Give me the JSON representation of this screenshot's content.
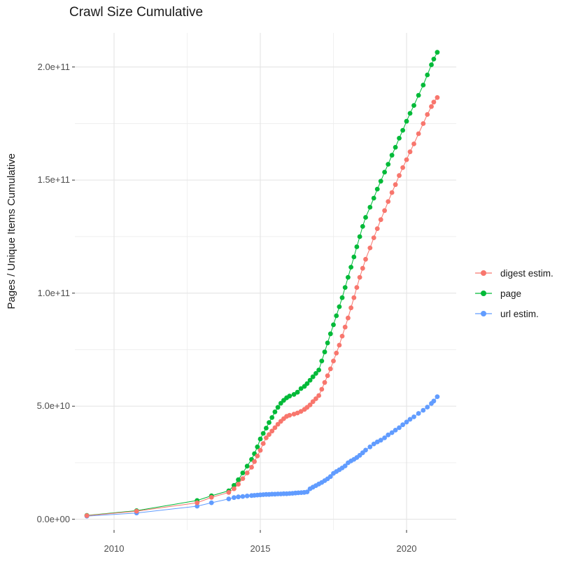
{
  "chart_data": {
    "type": "scatter",
    "title": "Crawl Size Cumulative",
    "ylabel": "Pages / Unique Items Cumulative",
    "xlabel": "",
    "value_unit": "1e9 (points stored as [year, value_in_billions]; 50 = 5.0e+10)",
    "grid": true,
    "legend_position": "right",
    "x_range": [
      2008.7,
      2021.7
    ],
    "y_range_billions": [
      -5,
      215
    ],
    "x_ticks": [
      {
        "label": "2010",
        "value": 2010
      },
      {
        "label": "2015",
        "value": 2015
      },
      {
        "label": "2020",
        "value": 2020
      }
    ],
    "x_minor": [
      2012.5,
      2017.5
    ],
    "y_ticks": [
      {
        "label": "0.0e+00",
        "value": 0
      },
      {
        "label": "5.0e+10",
        "value": 50
      },
      {
        "label": "1.0e+11",
        "value": 100
      },
      {
        "label": "1.5e+11",
        "value": 150
      },
      {
        "label": "2.0e+11",
        "value": 200
      }
    ],
    "y_minor": [
      25,
      75,
      125,
      175
    ],
    "series": [
      {
        "label": "digest estim.",
        "color": "#F8766D",
        "points": [
          [
            2009.07,
            1.6
          ],
          [
            2010.77,
            3.6
          ],
          [
            2012.84,
            7.3
          ],
          [
            2013.33,
            9.7
          ],
          [
            2013.92,
            11.9
          ],
          [
            2014.1,
            13.5
          ],
          [
            2014.25,
            15.5
          ],
          [
            2014.4,
            18.0
          ],
          [
            2014.55,
            20.5
          ],
          [
            2014.7,
            23.0
          ],
          [
            2014.8,
            25.5
          ],
          [
            2014.9,
            28.0
          ],
          [
            2015.0,
            30.5
          ],
          [
            2015.1,
            33.5
          ],
          [
            2015.2,
            36.0
          ],
          [
            2015.3,
            37.5
          ],
          [
            2015.4,
            39.0
          ],
          [
            2015.5,
            40.5
          ],
          [
            2015.6,
            42.0
          ],
          [
            2015.7,
            43.3
          ],
          [
            2015.8,
            44.5
          ],
          [
            2015.9,
            45.5
          ],
          [
            2016.0,
            46.0
          ],
          [
            2016.15,
            46.5
          ],
          [
            2016.27,
            47.0
          ],
          [
            2016.39,
            47.7
          ],
          [
            2016.51,
            48.6
          ],
          [
            2016.6,
            49.5
          ],
          [
            2016.7,
            50.6
          ],
          [
            2016.8,
            52.0
          ],
          [
            2016.9,
            53.3
          ],
          [
            2017.0,
            54.7
          ],
          [
            2017.1,
            57.5
          ],
          [
            2017.2,
            60.5
          ],
          [
            2017.3,
            63.5
          ],
          [
            2017.4,
            66.5
          ],
          [
            2017.5,
            70.0
          ],
          [
            2017.6,
            73.5
          ],
          [
            2017.7,
            77.0
          ],
          [
            2017.8,
            81.0
          ],
          [
            2017.9,
            85.0
          ],
          [
            2018.0,
            89.0
          ],
          [
            2018.1,
            93.5
          ],
          [
            2018.2,
            98.0
          ],
          [
            2018.3,
            102.5
          ],
          [
            2018.4,
            107.0
          ],
          [
            2018.5,
            111.0
          ],
          [
            2018.6,
            115.0
          ],
          [
            2018.75,
            120.0
          ],
          [
            2018.88,
            124.5
          ],
          [
            2019.0,
            128.5
          ],
          [
            2019.12,
            132.5
          ],
          [
            2019.25,
            136.5
          ],
          [
            2019.37,
            140.5
          ],
          [
            2019.5,
            144.5
          ],
          [
            2019.62,
            148.0
          ],
          [
            2019.75,
            152.0
          ],
          [
            2019.87,
            155.5
          ],
          [
            2020.0,
            159.0
          ],
          [
            2020.12,
            162.5
          ],
          [
            2020.25,
            166.0
          ],
          [
            2020.41,
            170.5
          ],
          [
            2020.57,
            175.0
          ],
          [
            2020.71,
            179.0
          ],
          [
            2020.85,
            182.5
          ],
          [
            2020.93,
            184.5
          ],
          [
            2021.05,
            186.5
          ]
        ]
      },
      {
        "label": "page",
        "color": "#00BA38",
        "points": [
          [
            2009.07,
            1.7
          ],
          [
            2010.77,
            3.8
          ],
          [
            2012.84,
            8.3
          ],
          [
            2013.33,
            10.4
          ],
          [
            2013.92,
            12.6
          ],
          [
            2014.1,
            15.0
          ],
          [
            2014.25,
            17.5
          ],
          [
            2014.4,
            20.5
          ],
          [
            2014.55,
            23.5
          ],
          [
            2014.7,
            26.5
          ],
          [
            2014.8,
            29.0
          ],
          [
            2014.9,
            32.0
          ],
          [
            2015.0,
            35.5
          ],
          [
            2015.1,
            38.0
          ],
          [
            2015.2,
            40.3
          ],
          [
            2015.3,
            42.8
          ],
          [
            2015.4,
            45.0
          ],
          [
            2015.5,
            47.5
          ],
          [
            2015.6,
            49.5
          ],
          [
            2015.7,
            51.3
          ],
          [
            2015.8,
            52.6
          ],
          [
            2015.9,
            53.7
          ],
          [
            2016.0,
            54.5
          ],
          [
            2016.15,
            55.2
          ],
          [
            2016.27,
            56.2
          ],
          [
            2016.39,
            57.8
          ],
          [
            2016.51,
            58.8
          ],
          [
            2016.6,
            60.0
          ],
          [
            2016.7,
            61.5
          ],
          [
            2016.8,
            63.0
          ],
          [
            2016.9,
            64.5
          ],
          [
            2017.0,
            66.0
          ],
          [
            2017.1,
            70.0
          ],
          [
            2017.2,
            74.0
          ],
          [
            2017.3,
            78.0
          ],
          [
            2017.4,
            82.0
          ],
          [
            2017.5,
            86.0
          ],
          [
            2017.6,
            90.0
          ],
          [
            2017.7,
            94.0
          ],
          [
            2017.8,
            98.0
          ],
          [
            2017.9,
            102.5
          ],
          [
            2018.0,
            107.0
          ],
          [
            2018.1,
            111.5
          ],
          [
            2018.2,
            116.0
          ],
          [
            2018.3,
            120.5
          ],
          [
            2018.4,
            125.0
          ],
          [
            2018.5,
            129.5
          ],
          [
            2018.6,
            133.5
          ],
          [
            2018.75,
            138.0
          ],
          [
            2018.88,
            142.0
          ],
          [
            2019.0,
            146.0
          ],
          [
            2019.12,
            149.5
          ],
          [
            2019.25,
            153.5
          ],
          [
            2019.37,
            157.0
          ],
          [
            2019.5,
            161.0
          ],
          [
            2019.62,
            164.5
          ],
          [
            2019.75,
            168.5
          ],
          [
            2019.87,
            172.0
          ],
          [
            2020.0,
            176.0
          ],
          [
            2020.12,
            179.5
          ],
          [
            2020.25,
            183.0
          ],
          [
            2020.41,
            187.5
          ],
          [
            2020.57,
            192.0
          ],
          [
            2020.71,
            196.5
          ],
          [
            2020.85,
            201.0
          ],
          [
            2020.93,
            203.5
          ],
          [
            2021.05,
            206.5
          ]
        ]
      },
      {
        "label": "url estim.",
        "color": "#619CFF",
        "points": [
          [
            2009.07,
            1.4
          ],
          [
            2010.77,
            2.8
          ],
          [
            2012.84,
            5.8
          ],
          [
            2013.33,
            7.3
          ],
          [
            2013.92,
            9.0
          ],
          [
            2014.1,
            9.6
          ],
          [
            2014.25,
            9.9
          ],
          [
            2014.4,
            10.1
          ],
          [
            2014.55,
            10.3
          ],
          [
            2014.7,
            10.5
          ],
          [
            2014.8,
            10.6
          ],
          [
            2014.9,
            10.7
          ],
          [
            2015.0,
            10.8
          ],
          [
            2015.1,
            10.9
          ],
          [
            2015.2,
            11.0
          ],
          [
            2015.3,
            11.0
          ],
          [
            2015.4,
            11.1
          ],
          [
            2015.5,
            11.1
          ],
          [
            2015.6,
            11.2
          ],
          [
            2015.7,
            11.2
          ],
          [
            2015.8,
            11.3
          ],
          [
            2015.9,
            11.3
          ],
          [
            2016.0,
            11.4
          ],
          [
            2016.1,
            11.5
          ],
          [
            2016.2,
            11.6
          ],
          [
            2016.3,
            11.7
          ],
          [
            2016.4,
            11.8
          ],
          [
            2016.5,
            11.9
          ],
          [
            2016.6,
            12.1
          ],
          [
            2016.7,
            13.5
          ],
          [
            2016.8,
            14.2
          ],
          [
            2016.9,
            14.9
          ],
          [
            2017.0,
            15.6
          ],
          [
            2017.1,
            16.3
          ],
          [
            2017.2,
            17.1
          ],
          [
            2017.3,
            17.9
          ],
          [
            2017.4,
            18.9
          ],
          [
            2017.5,
            20.3
          ],
          [
            2017.6,
            21.1
          ],
          [
            2017.7,
            21.9
          ],
          [
            2017.8,
            22.7
          ],
          [
            2017.9,
            23.6
          ],
          [
            2018.0,
            25.0
          ],
          [
            2018.1,
            25.8
          ],
          [
            2018.2,
            26.5
          ],
          [
            2018.3,
            27.3
          ],
          [
            2018.4,
            28.3
          ],
          [
            2018.5,
            29.4
          ],
          [
            2018.6,
            30.6
          ],
          [
            2018.75,
            32.0
          ],
          [
            2018.88,
            33.3
          ],
          [
            2019.0,
            34.2
          ],
          [
            2019.12,
            35.0
          ],
          [
            2019.25,
            36.0
          ],
          [
            2019.37,
            37.3
          ],
          [
            2019.5,
            38.3
          ],
          [
            2019.62,
            39.4
          ],
          [
            2019.75,
            40.5
          ],
          [
            2019.87,
            41.8
          ],
          [
            2020.0,
            43.0
          ],
          [
            2020.12,
            44.2
          ],
          [
            2020.25,
            45.3
          ],
          [
            2020.41,
            46.8
          ],
          [
            2020.57,
            48.2
          ],
          [
            2020.71,
            49.6
          ],
          [
            2020.85,
            51.2
          ],
          [
            2020.93,
            52.3
          ],
          [
            2021.05,
            54.2
          ]
        ]
      }
    ],
    "colors": {
      "digest_estim": "#F8766D",
      "page": "#00BA38",
      "url_estim": "#619CFF",
      "grid_major": "#e5e5e5",
      "grid_minor": "#ededed",
      "tick": "#333333",
      "tick_text": "#4d4d4d",
      "title_text": "#1a1a1a"
    }
  }
}
